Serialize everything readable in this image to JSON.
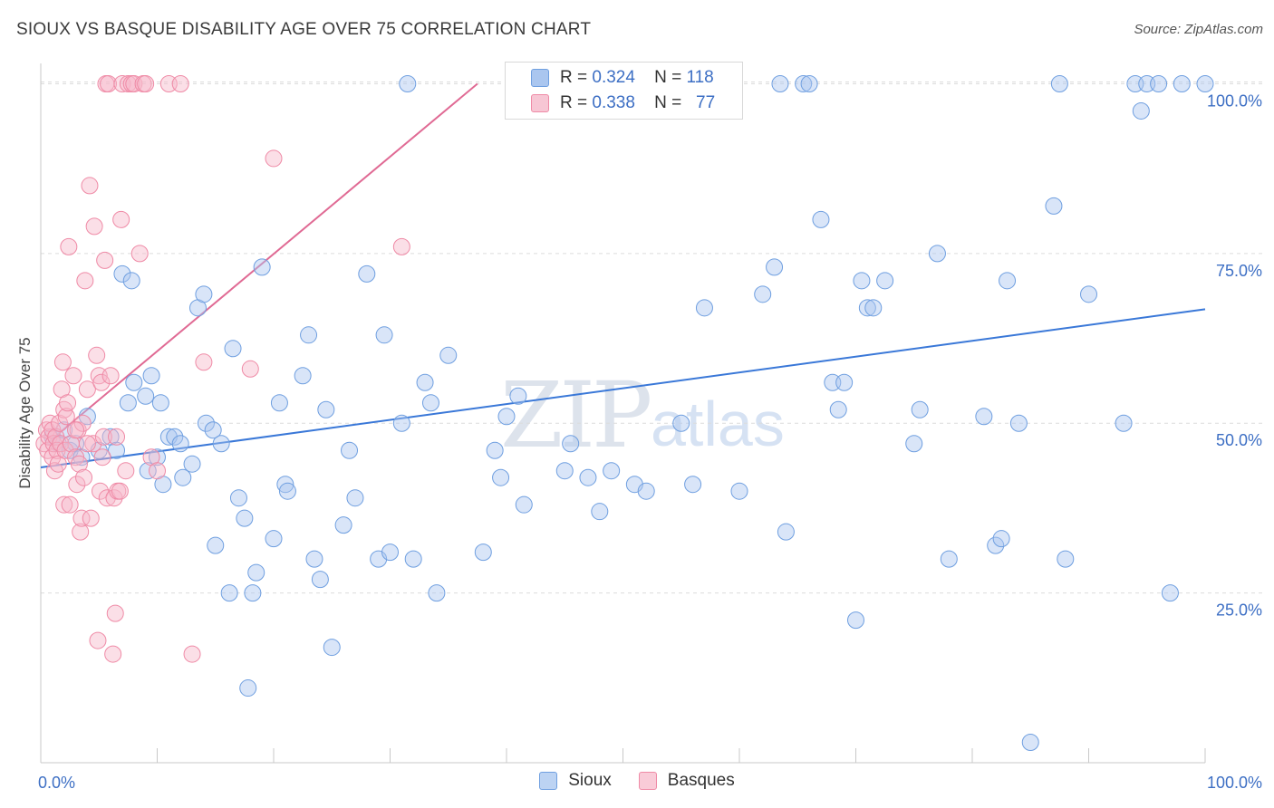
{
  "chart_data": {
    "type": "scatter",
    "title": "SIOUX VS BASQUE DISABILITY AGE OVER 75 CORRELATION CHART",
    "source": "Source: ZipAtlas.com",
    "ylabel": "Disability Age Over 75",
    "xlabel": "",
    "xlim": [
      0,
      100
    ],
    "ylim": [
      0,
      103
    ],
    "x_tick_labels": [
      "0.0%",
      "100.0%"
    ],
    "y_tick_values": [
      25,
      50,
      75,
      100
    ],
    "y_tick_labels": [
      "25.0%",
      "50.0%",
      "75.0%",
      "100.0%"
    ],
    "grid": "horizontal dashed",
    "watermark": {
      "part1": "ZIP",
      "part2": "atlas"
    },
    "legend": {
      "placement": "top-center",
      "entries": [
        {
          "r_label": "R =",
          "r_value": "0.324",
          "n_label": "N =",
          "n_value": "118"
        },
        {
          "r_label": "R =",
          "r_value": "0.338",
          "n_label": "N =",
          "n_value": "77"
        }
      ]
    },
    "series": [
      {
        "name": "Sioux",
        "color": "#6f9fe0",
        "fill": "#aac6ef",
        "line_color": "#3a78d8",
        "trend": {
          "x": [
            0,
            100
          ],
          "y": [
            43.5,
            66.8
          ]
        },
        "points": [
          [
            1,
            48
          ],
          [
            1.5,
            47
          ],
          [
            2,
            49
          ],
          [
            2.5,
            46
          ],
          [
            3,
            47
          ],
          [
            3.5,
            45
          ],
          [
            4,
            51
          ],
          [
            5,
            46
          ],
          [
            6,
            48
          ],
          [
            6.5,
            46
          ],
          [
            7,
            72
          ],
          [
            7.5,
            53
          ],
          [
            8,
            56
          ],
          [
            9,
            54
          ],
          [
            7.8,
            71
          ],
          [
            9.2,
            43
          ],
          [
            9.5,
            57
          ],
          [
            10,
            45
          ],
          [
            10.3,
            53
          ],
          [
            10.5,
            41
          ],
          [
            11,
            48
          ],
          [
            11.5,
            48
          ],
          [
            12,
            47
          ],
          [
            12.2,
            42
          ],
          [
            13,
            44
          ],
          [
            13.5,
            67
          ],
          [
            14,
            69
          ],
          [
            14.2,
            50
          ],
          [
            14.8,
            49
          ],
          [
            15,
            32
          ],
          [
            15.5,
            47
          ],
          [
            16.2,
            25
          ],
          [
            16.5,
            61
          ],
          [
            17,
            39
          ],
          [
            17.5,
            36
          ],
          [
            17.8,
            11
          ],
          [
            18.2,
            25
          ],
          [
            18.5,
            28
          ],
          [
            19,
            73
          ],
          [
            20,
            33
          ],
          [
            20.5,
            53
          ],
          [
            21,
            41
          ],
          [
            21.2,
            40
          ],
          [
            22.5,
            57
          ],
          [
            23,
            63
          ],
          [
            23.5,
            30
          ],
          [
            24,
            27
          ],
          [
            24.5,
            52
          ],
          [
            25,
            17
          ],
          [
            26,
            35
          ],
          [
            26.5,
            46
          ],
          [
            27,
            39
          ],
          [
            28,
            72
          ],
          [
            29,
            30
          ],
          [
            29.5,
            63
          ],
          [
            30,
            31
          ],
          [
            31,
            50
          ],
          [
            31.5,
            100
          ],
          [
            32,
            30
          ],
          [
            33,
            56
          ],
          [
            33.5,
            53
          ],
          [
            34,
            25
          ],
          [
            35,
            60
          ],
          [
            38,
            31
          ],
          [
            39,
            46
          ],
          [
            39.5,
            42
          ],
          [
            40,
            51
          ],
          [
            41,
            54
          ],
          [
            41.5,
            38
          ],
          [
            45,
            43
          ],
          [
            45.5,
            47
          ],
          [
            47,
            42
          ],
          [
            48,
            37
          ],
          [
            49,
            43
          ],
          [
            51,
            41
          ],
          [
            51.5,
            100
          ],
          [
            52,
            40
          ],
          [
            55,
            50
          ],
          [
            56,
            41
          ],
          [
            57,
            67
          ],
          [
            60,
            40
          ],
          [
            62,
            69
          ],
          [
            63,
            73
          ],
          [
            63.5,
            100
          ],
          [
            64,
            34
          ],
          [
            65.5,
            100
          ],
          [
            66,
            100
          ],
          [
            67,
            80
          ],
          [
            68,
            56
          ],
          [
            68.5,
            52
          ],
          [
            69,
            56
          ],
          [
            70,
            21
          ],
          [
            70.5,
            71
          ],
          [
            71,
            67
          ],
          [
            71.5,
            67
          ],
          [
            72.5,
            71
          ],
          [
            75,
            47
          ],
          [
            75.5,
            52
          ],
          [
            77,
            75
          ],
          [
            78,
            30
          ],
          [
            81,
            51
          ],
          [
            82,
            32
          ],
          [
            82.5,
            33
          ],
          [
            83,
            71
          ],
          [
            84,
            50
          ],
          [
            85,
            3
          ],
          [
            87,
            82
          ],
          [
            87.5,
            100
          ],
          [
            88,
            30
          ],
          [
            90,
            69
          ],
          [
            93,
            50
          ],
          [
            94,
            100
          ],
          [
            94.5,
            96
          ],
          [
            95,
            100
          ],
          [
            96,
            100
          ],
          [
            97,
            25
          ],
          [
            98,
            100
          ],
          [
            100,
            100
          ]
        ]
      },
      {
        "name": "Basques",
        "color": "#ef8aa6",
        "fill": "#f7b8ca",
        "line_color": "#e06a94",
        "trend": {
          "x": [
            0.5,
            37.5
          ],
          "y": [
            47,
            100
          ]
        },
        "points": [
          [
            0.3,
            47
          ],
          [
            0.5,
            49
          ],
          [
            0.6,
            46
          ],
          [
            0.7,
            48
          ],
          [
            0.8,
            50
          ],
          [
            1,
            45
          ],
          [
            1,
            49
          ],
          [
            1.1,
            47
          ],
          [
            1.2,
            43
          ],
          [
            1.3,
            48
          ],
          [
            1.4,
            46
          ],
          [
            1.5,
            44
          ],
          [
            1.6,
            50
          ],
          [
            1.7,
            47
          ],
          [
            1.8,
            55
          ],
          [
            1.9,
            59
          ],
          [
            2,
            52
          ],
          [
            2,
            38
          ],
          [
            2.1,
            46
          ],
          [
            2.2,
            51
          ],
          [
            2.3,
            53
          ],
          [
            2.4,
            76
          ],
          [
            2.5,
            38
          ],
          [
            2.6,
            47
          ],
          [
            2.8,
            57
          ],
          [
            3,
            45
          ],
          [
            3.1,
            41
          ],
          [
            3.2,
            49
          ],
          [
            3.3,
            44
          ],
          [
            3.4,
            34
          ],
          [
            3.5,
            36
          ],
          [
            3.6,
            50
          ],
          [
            3.7,
            42
          ],
          [
            3.8,
            71
          ],
          [
            4,
            55
          ],
          [
            4.2,
            85
          ],
          [
            4.3,
            36
          ],
          [
            4.5,
            47
          ],
          [
            4.6,
            79
          ],
          [
            4.8,
            60
          ],
          [
            4.9,
            18
          ],
          [
            5,
            57
          ],
          [
            5.1,
            40
          ],
          [
            5.2,
            56
          ],
          [
            5.3,
            45
          ],
          [
            5.4,
            48
          ],
          [
            5.5,
            74
          ],
          [
            5.6,
            100
          ],
          [
            5.7,
            39
          ],
          [
            5.8,
            100
          ],
          [
            6,
            57
          ],
          [
            6.2,
            16
          ],
          [
            6.3,
            39
          ],
          [
            6.4,
            22
          ],
          [
            6.5,
            48
          ],
          [
            6.6,
            40
          ],
          [
            6.8,
            40
          ],
          [
            6.9,
            80
          ],
          [
            7,
            100
          ],
          [
            7.3,
            43
          ],
          [
            7.5,
            100
          ],
          [
            7.8,
            100
          ],
          [
            8,
            100
          ],
          [
            8.5,
            75
          ],
          [
            8.8,
            100
          ],
          [
            9,
            100
          ],
          [
            9.5,
            45
          ],
          [
            10,
            43
          ],
          [
            11,
            100
          ],
          [
            12,
            100
          ],
          [
            13,
            16
          ],
          [
            14,
            59
          ],
          [
            18,
            58
          ],
          [
            20,
            89
          ],
          [
            31,
            76
          ],
          [
            4,
            47
          ],
          [
            3,
            49
          ]
        ]
      }
    ]
  }
}
